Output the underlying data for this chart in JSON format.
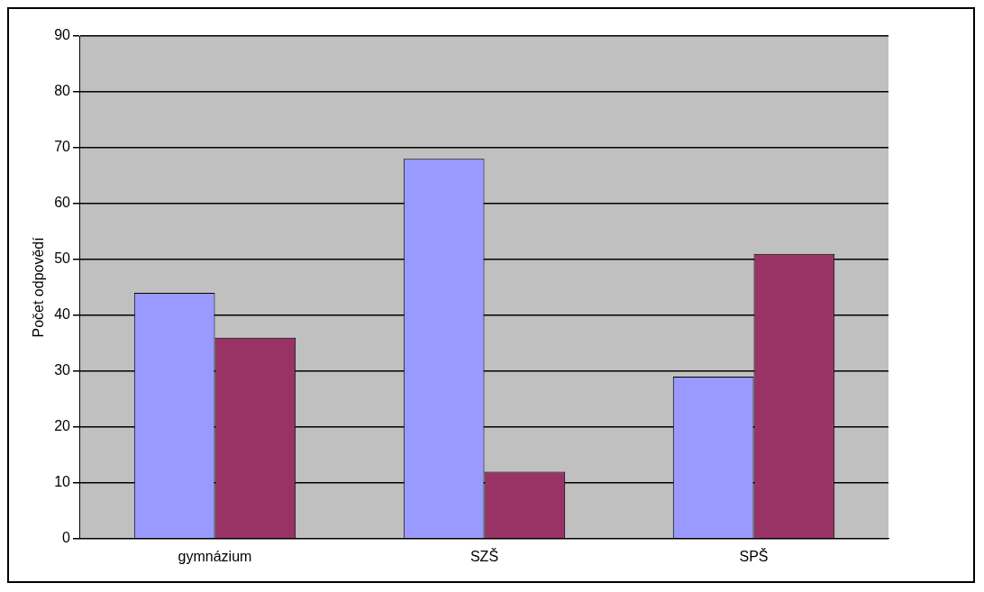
{
  "chart_data": {
    "type": "bar",
    "ylabel": "Počet odpovědí",
    "categories": [
      "gymnázium",
      "SZŠ",
      "SPŠ"
    ],
    "series": [
      {
        "color": "#9999ff",
        "values": [
          44,
          68,
          29
        ]
      },
      {
        "color": "#993366",
        "values": [
          36,
          12,
          51
        ]
      }
    ],
    "ylim": [
      0,
      90
    ],
    "yticks": [
      0,
      10,
      20,
      30,
      40,
      50,
      60,
      70,
      80,
      90
    ],
    "grid": "y",
    "legend": false
  }
}
